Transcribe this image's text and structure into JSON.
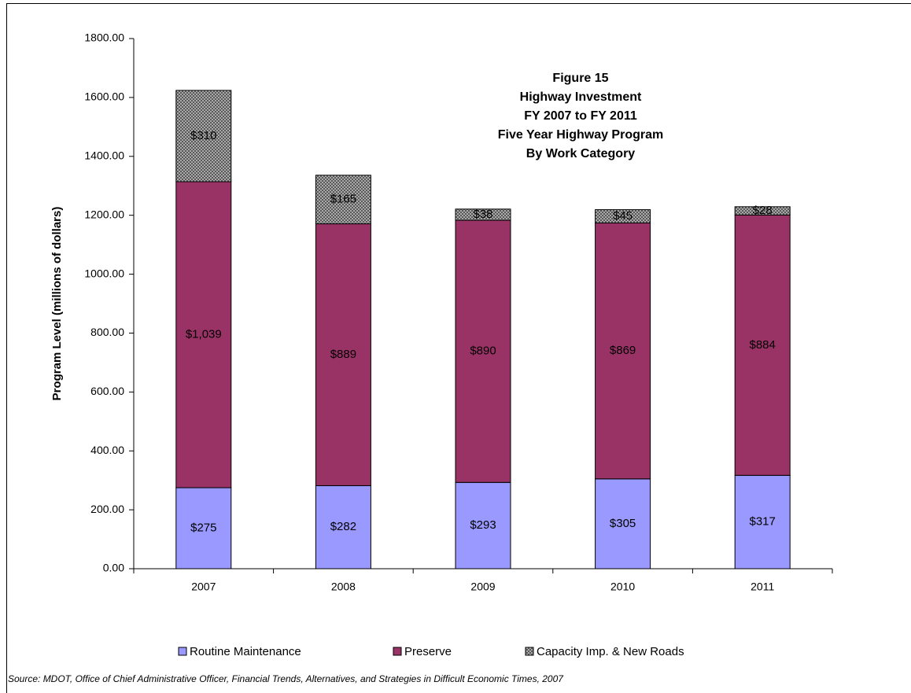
{
  "chart_data": {
    "type": "stacked_bar",
    "title": [
      "Figure 15",
      "Highway Investment",
      "FY 2007 to FY 2011",
      "Five Year Highway Program",
      "By Work Category"
    ],
    "ylabel": "Program Level (millions of dollars)",
    "categories": [
      "2007",
      "2008",
      "2009",
      "2010",
      "2011"
    ],
    "series": [
      {
        "name": "Routine Maintenance",
        "color": "#9999ff",
        "values": [
          275,
          282,
          293,
          305,
          317
        ],
        "value_labels": [
          "$275",
          "$282",
          "$293",
          "$305",
          "$317"
        ]
      },
      {
        "name": "Preserve",
        "color": "#993366",
        "values": [
          1039,
          889,
          890,
          869,
          884
        ],
        "value_labels": [
          "$1,039",
          "$889",
          "$890",
          "$869",
          "$884"
        ]
      },
      {
        "name": "Capacity Imp. & New Roads",
        "color": "#c0c0c0",
        "pattern": "crosshatch",
        "values": [
          310,
          165,
          38,
          45,
          28
        ],
        "value_labels": [
          "$310",
          "$165",
          "$38",
          "$45",
          "$28"
        ]
      }
    ],
    "ylim": [
      0,
      1800
    ],
    "yticks": [
      {
        "value": 0,
        "label": "0.00"
      },
      {
        "value": 200,
        "label": "200.00"
      },
      {
        "value": 400,
        "label": "400.00"
      },
      {
        "value": 600,
        "label": "600.00"
      },
      {
        "value": 800,
        "label": "800.00"
      },
      {
        "value": 1000,
        "label": "1000.00"
      },
      {
        "value": 1200,
        "label": "1200.00"
      },
      {
        "value": 1400,
        "label": "1400.00"
      },
      {
        "value": 1600,
        "label": "1600.00"
      },
      {
        "value": 1800,
        "label": "1800.00"
      }
    ],
    "legend": "bottom",
    "source": "Source: MDOT, Office of Chief Administrative Officer, Financial Trends, Alternatives, and Strategies in Difficult Economic Times, 2007"
  }
}
